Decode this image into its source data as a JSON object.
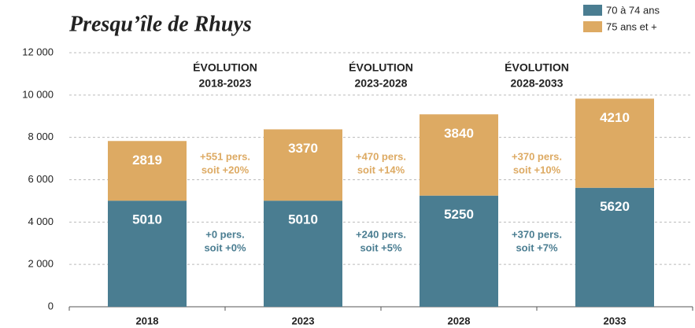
{
  "chart_data": {
    "type": "stacked_bar",
    "title": "Presqu’île de Rhuys",
    "categories": [
      "2018",
      "2023",
      "2028",
      "2033"
    ],
    "series": [
      {
        "name": "70 à 74 ans",
        "color": "#4a7d91",
        "values": [
          5010,
          5010,
          5250,
          5620
        ]
      },
      {
        "name": "75 ans et +",
        "color": "#ddaa63",
        "values": [
          2819,
          3370,
          3840,
          4210
        ]
      }
    ],
    "ylim": [
      0,
      12000
    ],
    "yticks": [
      0,
      {
        "value": 2000,
        "label": "2 000"
      },
      {
        "value": 4000,
        "label": "4 000"
      },
      {
        "value": 6000,
        "label": "6 000"
      },
      {
        "value": 8000,
        "label": "8 000"
      },
      {
        "value": 10000,
        "label": "10 000"
      },
      {
        "value": 12000,
        "label": "12 000"
      }
    ],
    "grid": true,
    "legend": "top-right",
    "annotations": [
      {
        "title": [
          "ÉVOLUTION",
          "2018-2023"
        ],
        "top": [
          "+551 pers.",
          "soit +20%"
        ],
        "bottom": [
          "+0 pers.",
          "soit +0%"
        ]
      },
      {
        "title": [
          "ÉVOLUTION",
          "2023-2028"
        ],
        "top": [
          "+470 pers.",
          "soit +14%"
        ],
        "bottom": [
          "+240 pers.",
          "soit +5%"
        ]
      },
      {
        "title": [
          "ÉVOLUTION",
          "2028-2033"
        ],
        "top": [
          "+370 pers.",
          "soit +10%"
        ],
        "bottom": [
          "+370 pers.",
          "soit +7%"
        ]
      }
    ]
  }
}
